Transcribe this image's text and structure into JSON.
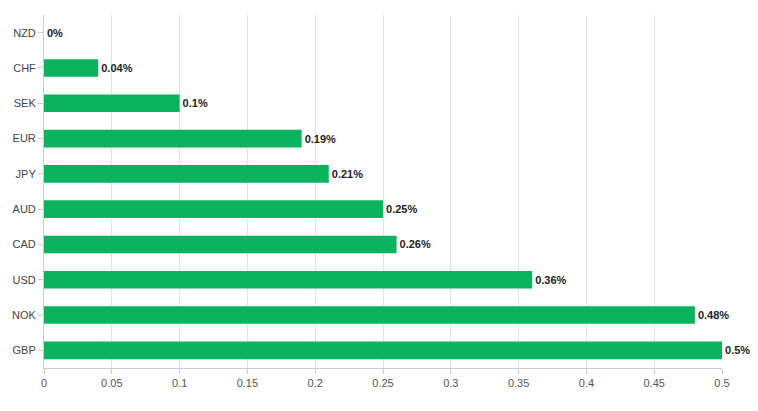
{
  "chart_data": {
    "type": "bar",
    "orientation": "horizontal",
    "categories": [
      "NZD",
      "CHF",
      "SEK",
      "EUR",
      "JPY",
      "AUD",
      "CAD",
      "USD",
      "NOK",
      "GBP"
    ],
    "values": [
      0,
      0.04,
      0.1,
      0.19,
      0.21,
      0.25,
      0.26,
      0.36,
      0.48,
      0.5
    ],
    "value_labels": [
      "0%",
      "0.04%",
      "0.1%",
      "0.19%",
      "0.21%",
      "0.25%",
      "0.26%",
      "0.36%",
      "0.48%",
      "0.5%"
    ],
    "data_labels": true,
    "color": "#0bb35f",
    "xlim": [
      0,
      0.5
    ],
    "xticks": [
      0,
      0.05,
      0.1,
      0.15,
      0.2,
      0.25,
      0.3,
      0.35,
      0.4,
      0.45,
      0.5
    ],
    "grid": true
  }
}
